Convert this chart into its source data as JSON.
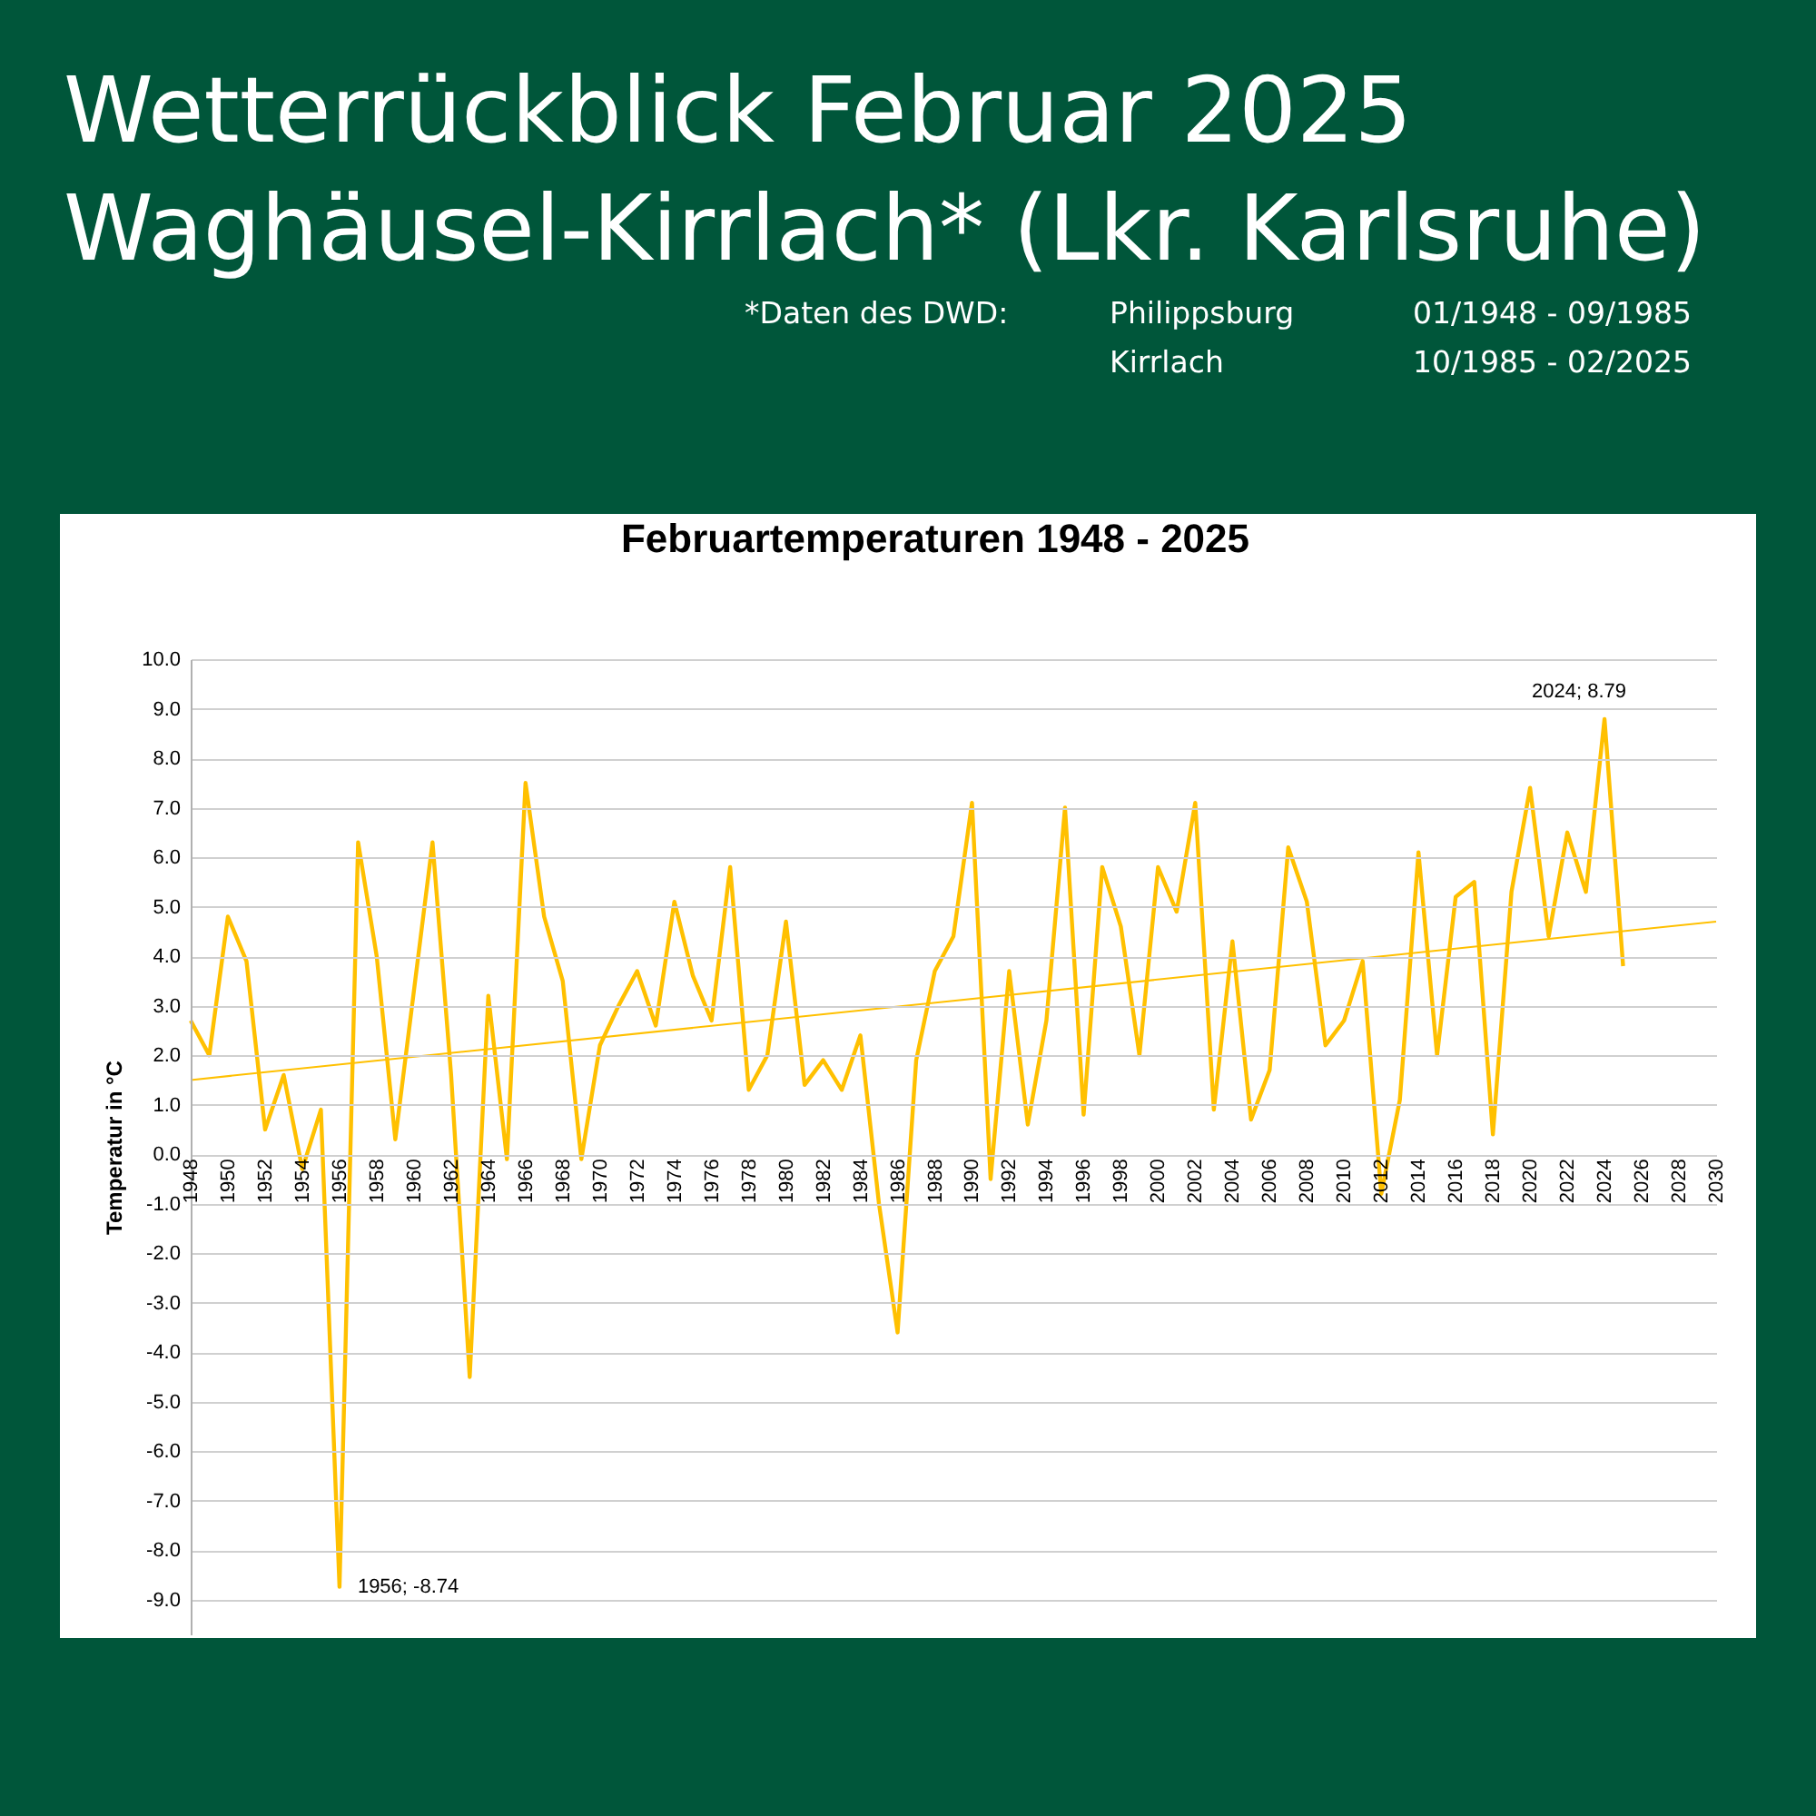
{
  "chart_data": {
    "type": "line",
    "title": "Februartemperaturen 1948 - 2025",
    "ylabel": "Temperatur in °C",
    "annotations": [
      "Wetterrückblick Februar 2025",
      "Waghäusel-Kirrlach* (Lkr. Karlsruhe)",
      "*Daten des DWD:",
      "Philippsburg",
      "01/1948 - 09/1985",
      "Kirrlach",
      "10/1985 - 02/2025",
      {
        "text": "2024; 8.79",
        "x": 2024,
        "y": 8.79
      },
      {
        "text": "1956; -8.74",
        "x": 1956,
        "y": -8.74
      }
    ],
    "series": [
      {
        "color": "#ffc000",
        "x": [
          1948,
          1949,
          1950,
          1951,
          1952,
          1953,
          1954,
          1955,
          1956,
          1957,
          1958,
          1959,
          1960,
          1961,
          1962,
          1963,
          1964,
          1965,
          1966,
          1967,
          1968,
          1969,
          1970,
          1971,
          1972,
          1973,
          1974,
          1975,
          1976,
          1977,
          1978,
          1979,
          1980,
          1981,
          1982,
          1983,
          1984,
          1985,
          1986,
          1987,
          1988,
          1989,
          1990,
          1991,
          1992,
          1993,
          1994,
          1995,
          1996,
          1997,
          1998,
          1999,
          2000,
          2001,
          2002,
          2003,
          2004,
          2005,
          2006,
          2007,
          2008,
          2009,
          2010,
          2011,
          2012,
          2013,
          2014,
          2015,
          2016,
          2017,
          2018,
          2019,
          2020,
          2021,
          2022,
          2023,
          2024,
          2025
        ],
        "values": [
          2.7,
          2.0,
          4.8,
          3.9,
          0.5,
          1.6,
          -0.3,
          0.9,
          -8.74,
          6.3,
          4.0,
          0.3,
          3.3,
          6.3,
          1.6,
          -4.5,
          3.2,
          -0.1,
          7.5,
          4.8,
          3.5,
          -0.1,
          2.2,
          3.0,
          3.7,
          2.6,
          5.1,
          3.6,
          2.7,
          5.8,
          1.3,
          2.0,
          4.7,
          1.4,
          1.9,
          1.3,
          2.4,
          -1.0,
          -3.6,
          1.9,
          3.7,
          4.4,
          7.1,
          -0.5,
          3.7,
          0.6,
          2.7,
          7.0,
          0.8,
          5.8,
          4.6,
          2.0,
          5.8,
          4.9,
          7.1,
          0.9,
          4.3,
          0.7,
          1.7,
          6.2,
          5.1,
          2.2,
          2.7,
          3.9,
          -0.8,
          1.1,
          6.1,
          2.0,
          5.2,
          5.5,
          0.4,
          5.3,
          7.4,
          4.4,
          6.5,
          5.3,
          8.79,
          3.8
        ]
      },
      {
        "type": "line",
        "color": "#ffc000",
        "x": [
          1948,
          2030
        ],
        "values": [
          1.5,
          4.7
        ]
      }
    ],
    "xlim": [
      1948,
      2030
    ],
    "xticks": [
      1948,
      1950,
      1952,
      1954,
      1956,
      1958,
      1960,
      1962,
      1964,
      1966,
      1968,
      1970,
      1972,
      1974,
      1976,
      1978,
      1980,
      1982,
      1984,
      1986,
      1988,
      1990,
      1992,
      1994,
      1996,
      1998,
      2000,
      2002,
      2004,
      2006,
      2008,
      2010,
      2012,
      2014,
      2016,
      2018,
      2020,
      2022,
      2024,
      2026,
      2028,
      2030
    ],
    "ylim": [
      -9.7,
      10
    ],
    "yticks": [
      {
        "value": 10,
        "label": "10.0"
      },
      {
        "value": 9,
        "label": "9.0"
      },
      {
        "value": 8,
        "label": "8.0"
      },
      {
        "value": 7,
        "label": "7.0"
      },
      {
        "value": 6,
        "label": "6.0"
      },
      {
        "value": 5,
        "label": "5.0"
      },
      {
        "value": 4,
        "label": "4.0"
      },
      {
        "value": 3,
        "label": "3.0"
      },
      {
        "value": 2,
        "label": "2.0"
      },
      {
        "value": 1,
        "label": "1.0"
      },
      {
        "value": 0,
        "label": "0.0"
      },
      {
        "value": -1,
        "label": "-1.0"
      },
      {
        "value": -2,
        "label": "-2.0"
      },
      {
        "value": -3,
        "label": "-3.0"
      },
      {
        "value": -4,
        "label": "-4.0"
      },
      {
        "value": -5,
        "label": "-5.0"
      },
      {
        "value": -6,
        "label": "-6.0"
      },
      {
        "value": -7,
        "label": "-7.0"
      },
      {
        "value": -8,
        "label": "-8.0"
      },
      {
        "value": -9,
        "label": "-9.0"
      }
    ],
    "grid": "y",
    "marker": "none",
    "line_style": "solid"
  }
}
